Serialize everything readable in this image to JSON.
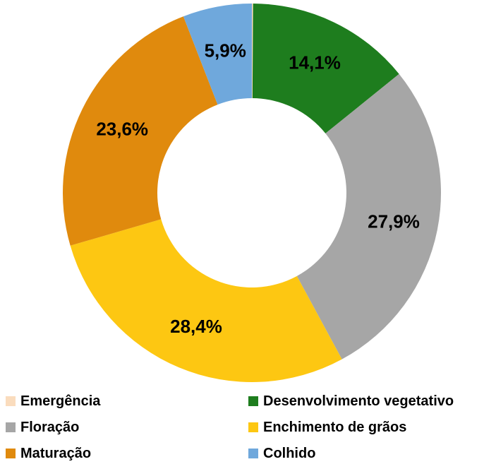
{
  "chart_data": {
    "type": "pie",
    "subtype": "donut",
    "title": "",
    "unit": "%",
    "decimal_separator": ",",
    "start_angle_deg": 0,
    "direction": "clockwise",
    "inner_radius_ratio": 0.5,
    "grid": false,
    "legend_position": "bottom",
    "legend_columns": 2,
    "background_color": "#FFFFFF",
    "value_label_color": "#000000",
    "slices": [
      {
        "name": "emergencia",
        "label": "Emergência",
        "value": 0.1,
        "display_label": "",
        "color": "#FADCBD"
      },
      {
        "name": "desenvolvimento-vegetativo",
        "label": "Desenvolvimento vegetativo",
        "value": 14.1,
        "display_label": "14,1%",
        "color": "#1E7D1E"
      },
      {
        "name": "floracao",
        "label": "Floração",
        "value": 27.9,
        "display_label": "27,9%",
        "color": "#A6A6A6"
      },
      {
        "name": "enchimento-de-graos",
        "label": "Enchimento de grãos",
        "value": 28.4,
        "display_label": "28,4%",
        "color": "#FDC712"
      },
      {
        "name": "maturacao",
        "label": "Maturação",
        "value": 23.6,
        "display_label": "23,6%",
        "color": "#E08A0D"
      },
      {
        "name": "colhido",
        "label": "Colhido",
        "value": 5.9,
        "display_label": "5,9%",
        "color": "#6FA8DC"
      }
    ]
  }
}
